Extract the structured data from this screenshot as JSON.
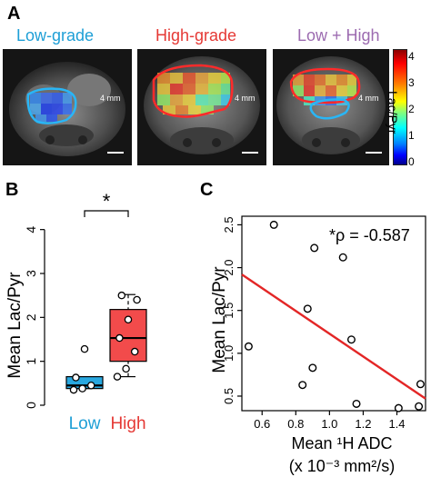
{
  "panel_a": {
    "letter": "A",
    "images": [
      {
        "title": "Low-grade",
        "title_color": "#1e9fd6",
        "outline_color": "#29b6f6",
        "scale_label": "4 mm"
      },
      {
        "title": "High-grade",
        "title_color": "#e53935",
        "outline_color": "#ff2a2a",
        "scale_label": "4 mm"
      },
      {
        "title": "Low + High",
        "title_color": "#9c6bb0",
        "outline_color": "#ff2a2a",
        "scale_label": "4 mm"
      }
    ],
    "colorbar": {
      "label": "Lac/Pyr",
      "ticks": [
        "4",
        "3",
        "2",
        "1",
        "0"
      ]
    }
  },
  "panel_b": {
    "letter": "B",
    "significance": "*",
    "ylabel": "Mean Lac/Pyr"
  },
  "panel_c": {
    "letter": "C",
    "annotation": "*ρ = -0.587",
    "xlabel_line1": "Mean ¹H ADC",
    "xlabel_line2": "(x 10⁻³ mm²/s)",
    "ylabel": "Mean Lac/Pyr"
  },
  "chart_data": [
    {
      "type": "box",
      "categories": [
        "Low",
        "High"
      ],
      "category_colors": [
        "#29a8e0",
        "#f24b4b"
      ],
      "ylabel": "Mean Lac/Pyr",
      "ylim": [
        0,
        4.2
      ],
      "yticks": [
        0,
        1,
        2,
        3,
        4
      ],
      "series": [
        {
          "name": "Low",
          "q1": 0.38,
          "median": 0.45,
          "q3": 0.65,
          "whisker_low": 0.38,
          "whisker_high": 0.65,
          "points": [
            0.35,
            0.38,
            0.45,
            0.63,
            1.28
          ]
        },
        {
          "name": "High",
          "q1": 1.0,
          "median": 1.53,
          "q3": 2.18,
          "whisker_low": 0.65,
          "whisker_high": 2.52,
          "points": [
            0.65,
            0.83,
            1.22,
            1.53,
            1.95,
            2.4,
            2.5
          ]
        }
      ]
    },
    {
      "type": "scatter",
      "xlabel": "Mean ¹H ADC (x 10⁻³ mm²/s)",
      "ylabel": "Mean Lac/Pyr",
      "xlim": [
        0.48,
        1.57
      ],
      "ylim": [
        0.33,
        2.6
      ],
      "xticks": [
        0.6,
        0.8,
        1.0,
        1.2,
        1.4
      ],
      "yticks": [
        0.5,
        1.0,
        1.5,
        2.0,
        2.5
      ],
      "x": [
        0.52,
        0.67,
        0.84,
        0.87,
        0.9,
        0.91,
        1.08,
        1.13,
        1.16,
        1.41,
        1.53,
        1.54
      ],
      "y": [
        1.08,
        2.5,
        0.63,
        1.52,
        0.83,
        2.23,
        2.12,
        1.16,
        0.41,
        0.36,
        0.38,
        0.64
      ],
      "fit_line": {
        "x": [
          0.48,
          1.57
        ],
        "y": [
          1.92,
          0.47
        ],
        "color": "#e32626"
      },
      "point_color": "#000000"
    }
  ]
}
